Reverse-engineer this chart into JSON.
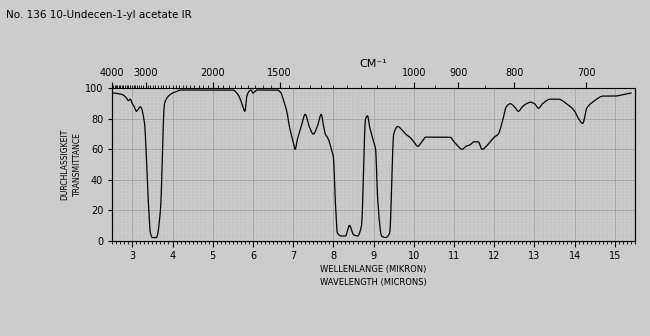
{
  "title": "No. 136 10-Undecen-1-yl acetate IR",
  "xlabel_bottom": "WELLENLANGE (MIKRON)\nWAVELENGTH (MICRONS)",
  "ylabel": "DURCHLASSIGKEIT\nTRANSMITTANCE",
  "xlabel_top": "CM⁻¹",
  "bg_color": "#cccccc",
  "grid_major_color": "#999999",
  "grid_minor_color": "#bbbbbb",
  "line_color": "#000000",
  "xlim_micron": [
    2.5,
    15.5
  ],
  "ylim": [
    0,
    100
  ],
  "top_axis_ticks": [
    4000,
    3000,
    2000,
    1500,
    1000,
    900,
    800,
    700
  ],
  "bottom_axis_ticks": [
    3,
    4,
    5,
    6,
    7,
    8,
    9,
    10,
    11,
    12,
    13,
    14,
    15
  ],
  "spectrum_x": [
    2.5,
    2.75,
    2.85,
    2.9,
    2.95,
    3.0,
    3.05,
    3.1,
    3.2,
    3.3,
    3.4,
    3.45,
    3.5,
    3.6,
    3.7,
    3.8,
    3.9,
    4.0,
    4.1,
    4.2,
    4.3,
    4.4,
    4.5,
    4.6,
    4.7,
    4.8,
    4.9,
    5.0,
    5.1,
    5.2,
    5.3,
    5.4,
    5.5,
    5.6,
    5.65,
    5.7,
    5.75,
    5.8,
    5.85,
    5.9,
    5.95,
    6.0,
    6.05,
    6.1,
    6.2,
    6.3,
    6.4,
    6.5,
    6.6,
    6.7,
    6.75,
    6.8,
    6.85,
    6.9,
    6.95,
    7.0,
    7.05,
    7.1,
    7.2,
    7.3,
    7.4,
    7.5,
    7.6,
    7.7,
    7.75,
    7.8,
    7.85,
    7.9,
    7.95,
    8.0,
    8.05,
    8.1,
    8.2,
    8.3,
    8.4,
    8.5,
    8.6,
    8.7,
    8.8,
    8.85,
    8.9,
    8.95,
    9.0,
    9.05,
    9.1,
    9.2,
    9.3,
    9.4,
    9.5,
    9.6,
    9.7,
    9.8,
    9.9,
    10.0,
    10.1,
    10.2,
    10.3,
    10.5,
    10.7,
    10.9,
    11.0,
    11.1,
    11.2,
    11.3,
    11.4,
    11.5,
    11.6,
    11.7,
    11.8,
    11.9,
    12.0,
    12.1,
    12.2,
    12.3,
    12.4,
    12.5,
    12.6,
    12.7,
    12.8,
    12.9,
    13.0,
    13.1,
    13.2,
    13.4,
    13.6,
    13.8,
    13.9,
    14.0,
    14.1,
    14.2,
    14.3,
    14.5,
    14.7,
    14.9,
    15.0,
    15.2,
    15.4
  ],
  "spectrum_y": [
    97,
    96,
    94,
    92,
    93,
    90,
    88,
    85,
    88,
    78,
    25,
    5,
    2,
    2,
    20,
    90,
    95,
    97,
    98,
    99,
    99,
    99,
    99,
    99,
    99,
    99,
    99,
    99,
    99,
    99,
    99,
    99,
    99,
    97,
    95,
    92,
    88,
    85,
    95,
    98,
    99,
    97,
    98,
    99,
    99,
    99,
    99,
    99,
    99,
    97,
    93,
    89,
    84,
    76,
    70,
    65,
    60,
    66,
    75,
    83,
    75,
    70,
    75,
    83,
    76,
    70,
    68,
    65,
    60,
    55,
    25,
    5,
    3,
    3,
    10,
    4,
    3,
    10,
    80,
    82,
    75,
    70,
    65,
    60,
    28,
    3,
    2,
    5,
    70,
    75,
    73,
    70,
    68,
    65,
    62,
    65,
    68,
    68,
    68,
    68,
    65,
    62,
    60,
    62,
    63,
    65,
    65,
    60,
    62,
    65,
    68,
    70,
    78,
    88,
    90,
    88,
    85,
    88,
    90,
    91,
    90,
    87,
    90,
    93,
    93,
    90,
    88,
    85,
    80,
    77,
    87,
    92,
    95,
    95,
    95,
    96,
    97
  ]
}
